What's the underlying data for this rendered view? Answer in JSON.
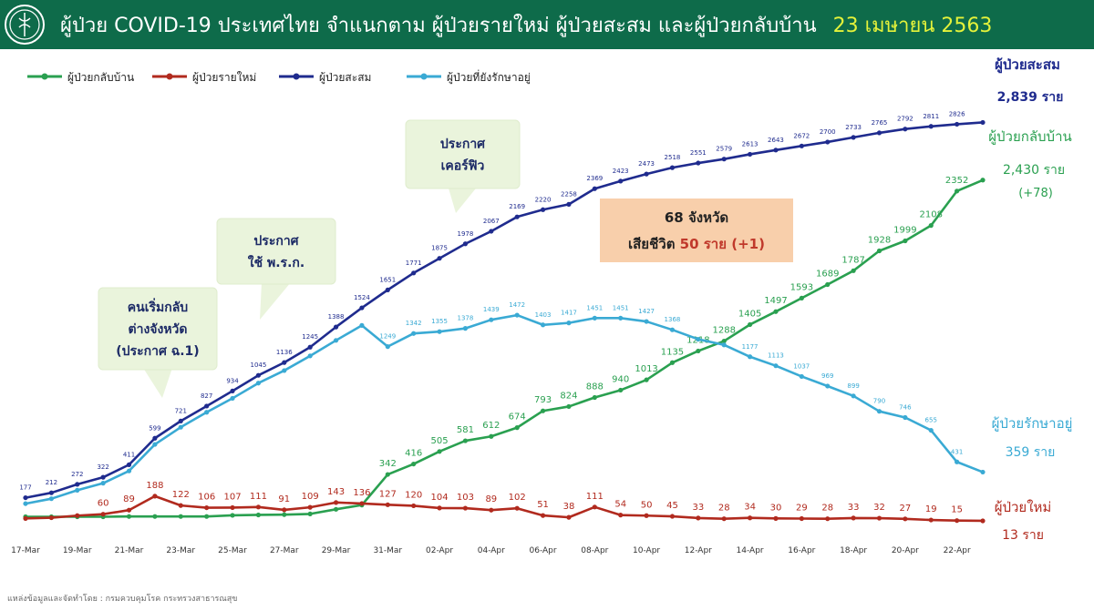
{
  "header": {
    "title": "ผู้ป่วย COVID-19 ประเทศไทย จำแนกตาม ผู้ป่วยรายใหม่ ผู้ป่วยสะสม  และผู้ป่วยกลับบ้าน",
    "date": "23 เมษายน 2563",
    "logo_icon": "ministry-of-public-health-logo",
    "bg_color": "#0e6b4a",
    "date_color": "#e4f23a"
  },
  "chart_data": {
    "type": "line",
    "x": [
      "17-Mar",
      "18-Mar",
      "19-Mar",
      "20-Mar",
      "21-Mar",
      "22-Mar",
      "23-Mar",
      "24-Mar",
      "25-Mar",
      "26-Mar",
      "27-Mar",
      "28-Mar",
      "29-Mar",
      "30-Mar",
      "31-Mar",
      "01-Apr",
      "02-Apr",
      "03-Apr",
      "04-Apr",
      "05-Apr",
      "06-Apr",
      "07-Apr",
      "08-Apr",
      "09-Apr",
      "10-Apr",
      "11-Apr",
      "12-Apr",
      "13-Apr",
      "14-Apr",
      "15-Apr",
      "16-Apr",
      "17-Apr",
      "18-Apr",
      "19-Apr",
      "20-Apr",
      "21-Apr",
      "22-Apr",
      "23-Apr"
    ],
    "x_tick_labels": [
      "17-Mar",
      "19-Mar",
      "21-Mar",
      "23-Mar",
      "25-Mar",
      "27-Mar",
      "29-Mar",
      "31-Mar",
      "02-Apr",
      "04-Apr",
      "06-Apr",
      "08-Apr",
      "10-Apr",
      "12-Apr",
      "14-Apr",
      "16-Apr",
      "18-Apr",
      "20-Apr",
      "22-Apr"
    ],
    "ylim": [
      0,
      2900
    ],
    "grid": false,
    "legend_position": "top-left",
    "series": [
      {
        "name": "ผู้ป่วยกลับบ้าน",
        "color": "#2aa050",
        "values": [
          42,
          42,
          42,
          42,
          44,
          44,
          44,
          44,
          52,
          55,
          57,
          62,
          95,
          125,
          342,
          416,
          505,
          581,
          612,
          674,
          793,
          824,
          888,
          940,
          1013,
          1135,
          1218,
          1288,
          1405,
          1497,
          1593,
          1689,
          1787,
          1928,
          1999,
          2108,
          2352,
          2430
        ],
        "labels": [
          "",
          "",
          "",
          "",
          "",
          "",
          "",
          "",
          "",
          "",
          "",
          "",
          "",
          "",
          "342",
          "416",
          "505",
          "581",
          "612",
          "674",
          "793",
          "824",
          "888",
          "940",
          "1013",
          "1135",
          "1218",
          "1288",
          "1405",
          "1497",
          "1593",
          "1689",
          "1787",
          "1928",
          "1999",
          "2108",
          "2352",
          ""
        ]
      },
      {
        "name": "ผู้ป่วยรายใหม่",
        "color": "#b12a1e",
        "values": [
          30,
          35,
          50,
          60,
          89,
          188,
          122,
          106,
          107,
          111,
          91,
          109,
          143,
          136,
          127,
          120,
          104,
          103,
          89,
          102,
          51,
          38,
          111,
          54,
          50,
          45,
          33,
          28,
          34,
          30,
          29,
          28,
          33,
          32,
          27,
          19,
          15,
          13
        ],
        "labels": [
          "",
          "",
          "",
          "60",
          "89",
          "188",
          "122",
          "106",
          "107",
          "111",
          "91",
          "109",
          "143",
          "136",
          "127",
          "120",
          "104",
          "103",
          "89",
          "102",
          "51",
          "38",
          "111",
          "54",
          "50",
          "45",
          "33",
          "28",
          "34",
          "30",
          "29",
          "28",
          "33",
          "32",
          "27",
          "19",
          "15",
          ""
        ]
      },
      {
        "name": "ผู้ป่วยสะสม",
        "color": "#1f2b8e",
        "values": [
          177,
          212,
          272,
          322,
          411,
          599,
          721,
          827,
          934,
          1045,
          1136,
          1245,
          1388,
          1524,
          1651,
          1771,
          1875,
          1978,
          2067,
          2169,
          2220,
          2258,
          2369,
          2423,
          2473,
          2518,
          2551,
          2579,
          2613,
          2643,
          2672,
          2700,
          2733,
          2765,
          2792,
          2811,
          2826,
          2839
        ],
        "labels": [
          "177",
          "212",
          "272",
          "322",
          "411",
          "599",
          "721",
          "827",
          "934",
          "1045",
          "1136",
          "1245",
          "1388",
          "1524",
          "1651",
          "1771",
          "1875",
          "1978",
          "2067",
          "2169",
          "2220",
          "2258",
          "2369",
          "2423",
          "2473",
          "2518",
          "2551",
          "2579",
          "2613",
          "2643",
          "2672",
          "2700",
          "2733",
          "2765",
          "2792",
          "2811",
          "2826",
          ""
        ]
      },
      {
        "name": "ผู้ป่วยที่ยังรักษาอยู่",
        "color": "#3aaad4",
        "values": [
          135,
          170,
          230,
          280,
          367,
          555,
          677,
          783,
          882,
          990,
          1079,
          1183,
          1293,
          1399,
          1249,
          1342,
          1355,
          1378,
          1439,
          1472,
          1403,
          1417,
          1451,
          1451,
          1427,
          1368,
          1301,
          1261,
          1177,
          1113,
          1037,
          969,
          899,
          790,
          746,
          655,
          431,
          359
        ],
        "labels": [
          "",
          "",
          "",
          "",
          "",
          "",
          "",
          "",
          "",
          "",
          "",
          "",
          "",
          "",
          "1249",
          "1342",
          "1355",
          "1378",
          "1439",
          "1472",
          "1403",
          "1417",
          "1451",
          "1451",
          "1427",
          "1368",
          "",
          "",
          "1177",
          "1113",
          "1037",
          "969",
          "899",
          "790",
          "746",
          "655",
          "431",
          ""
        ]
      }
    ],
    "end_labels": {
      "cumulative": {
        "label": "ผู้ป่วยสะสม",
        "value": "2,839 ราย"
      },
      "recovered": {
        "label": "ผู้ป่วยกลับบ้าน",
        "value": "2,430 ราย",
        "delta": "(+78)"
      },
      "active": {
        "label": "ผู้ป่วยรักษาอยู่",
        "value": "359 ราย"
      },
      "new": {
        "label": "ผู้ป่วยใหม่",
        "value": "13 ราย"
      }
    },
    "annotations": [
      {
        "lines": [
          "คนเริ่มกลับ",
          "ต่างจังหวัด",
          "(ประกาศ ฉ.1)"
        ],
        "pointer_date": "22-Mar"
      },
      {
        "lines": [
          "ประกาศ",
          "ใช้ พ.ร.ก."
        ],
        "pointer_date": "26-Mar"
      },
      {
        "lines": [
          "ประกาศ",
          "เคอร์ฟิว"
        ],
        "pointer_date": "03-Apr"
      }
    ],
    "summary_box": {
      "line1": "68 จังหวัด",
      "line2_prefix": "เสียชีวิต ",
      "line2_highlight": "50 ราย (+1)"
    }
  },
  "footer": "แหล่งข้อมูลและจัดทำโดย : กรมควบคุมโรค กระทรวงสาธารณสุข"
}
